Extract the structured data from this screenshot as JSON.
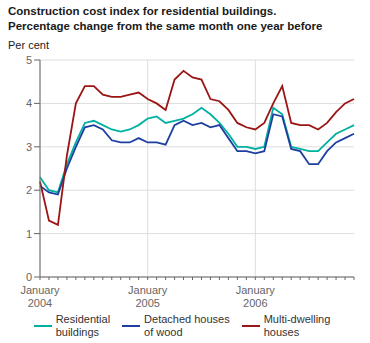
{
  "chart_data": {
    "type": "line",
    "title": "Construction cost index for residential buildings.",
    "subtitle": "Percentage change from the same month one year before",
    "y_label": "Per cent",
    "categories": [
      "January\n2004",
      null,
      null,
      null,
      null,
      null,
      null,
      null,
      null,
      null,
      null,
      null,
      "January\n2005",
      null,
      null,
      null,
      null,
      null,
      null,
      null,
      null,
      null,
      null,
      null,
      "January\n2006",
      null,
      null,
      null,
      null,
      null,
      null,
      null,
      null,
      null,
      null,
      null
    ],
    "series": [
      {
        "name": "Residential\nbuildings",
        "color": "#00B0A0",
        "values": [
          2.3,
          2.0,
          1.95,
          2.6,
          3.1,
          3.55,
          3.6,
          3.5,
          3.4,
          3.35,
          3.4,
          3.5,
          3.65,
          3.7,
          3.55,
          3.6,
          3.65,
          3.75,
          3.9,
          3.75,
          3.55,
          3.3,
          3.0,
          3.0,
          2.95,
          3.0,
          3.9,
          3.75,
          3.0,
          2.95,
          2.9,
          2.9,
          3.1,
          3.3,
          3.4,
          3.5
        ]
      },
      {
        "name": "Detached houses\nof wood",
        "color": "#1C3FA0",
        "values": [
          2.1,
          1.95,
          1.9,
          2.5,
          3.0,
          3.45,
          3.5,
          3.4,
          3.15,
          3.1,
          3.1,
          3.2,
          3.1,
          3.1,
          3.05,
          3.5,
          3.6,
          3.5,
          3.55,
          3.45,
          3.5,
          3.2,
          2.9,
          2.9,
          2.85,
          2.9,
          3.75,
          3.7,
          2.95,
          2.9,
          2.6,
          2.6,
          2.9,
          3.1,
          3.2,
          3.3
        ]
      },
      {
        "name": "Multi-dwelling\nhouses",
        "color": "#9B1515",
        "values": [
          2.2,
          1.3,
          1.2,
          2.8,
          4.0,
          4.4,
          4.4,
          4.2,
          4.15,
          4.15,
          4.2,
          4.25,
          4.1,
          4.0,
          3.85,
          4.55,
          4.75,
          4.6,
          4.55,
          4.1,
          4.05,
          3.85,
          3.55,
          3.45,
          3.4,
          3.55,
          4.0,
          4.4,
          3.55,
          3.5,
          3.5,
          3.4,
          3.55,
          3.8,
          4.0,
          4.1
        ]
      }
    ],
    "ylim": [
      0,
      5
    ],
    "yticks": [
      0,
      1,
      2,
      3,
      4,
      5
    ],
    "grid": true,
    "legend": "bottom"
  }
}
